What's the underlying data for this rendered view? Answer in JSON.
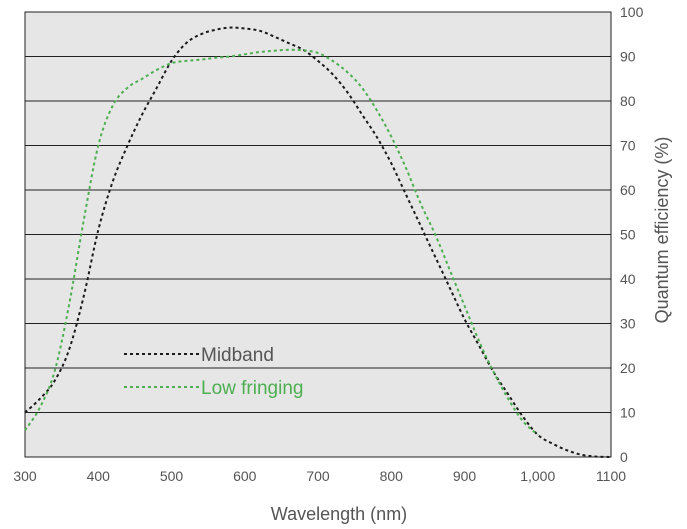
{
  "chart_data": {
    "type": "line",
    "xlabel": "Wavelength (nm)",
    "ylabel": "Quantum efficiency (%)",
    "xlim": [
      300,
      1100
    ],
    "ylim": [
      0,
      100
    ],
    "x_ticks": [
      "300",
      "400",
      "500",
      "600",
      "700",
      "800",
      "900",
      "1,000",
      "1100"
    ],
    "x_tick_values": [
      300,
      400,
      500,
      600,
      700,
      800,
      900,
      1000,
      1100
    ],
    "y_ticks": [
      "0",
      "10",
      "20",
      "30",
      "40",
      "50",
      "60",
      "70",
      "80",
      "90",
      "100"
    ],
    "y_tick_values": [
      0,
      10,
      20,
      30,
      40,
      50,
      60,
      70,
      80,
      90,
      100
    ],
    "grid": "horizontal",
    "y_axis_side": "right",
    "plot_background": "#e6e6e6",
    "legend_position": "lower-left",
    "series": [
      {
        "name": "Midband",
        "color": "#1a1a1a",
        "line_style": "dotted",
        "x": [
          300,
          320,
          340,
          360,
          380,
          400,
          420,
          440,
          460,
          480,
          500,
          520,
          540,
          560,
          580,
          600,
          620,
          640,
          660,
          680,
          700,
          720,
          740,
          760,
          780,
          800,
          820,
          840,
          860,
          880,
          900,
          920,
          940,
          960,
          980,
          1000,
          1020,
          1040,
          1060,
          1080,
          1100
        ],
        "y": [
          10,
          13,
          17,
          24,
          36,
          51,
          62,
          70,
          77,
          83,
          89,
          93,
          95,
          96,
          96.5,
          96.3,
          95.8,
          94.5,
          93,
          91.5,
          89,
          86,
          82,
          77,
          72,
          66,
          59,
          52,
          45,
          38,
          31,
          25,
          19,
          14,
          9,
          5,
          3,
          1.5,
          0.5,
          0.1,
          0
        ]
      },
      {
        "name": "Low fringing",
        "color": "#4caf50",
        "line_style": "dotted",
        "x": [
          300,
          320,
          340,
          360,
          380,
          400,
          420,
          440,
          460,
          480,
          500,
          520,
          540,
          560,
          580,
          600,
          620,
          640,
          660,
          680,
          700,
          720,
          740,
          760,
          780,
          800,
          820,
          840,
          860,
          880,
          900,
          920,
          940,
          960,
          980,
          1000
        ],
        "y": [
          6,
          11,
          19,
          34,
          53,
          70,
          79,
          83,
          85,
          87,
          88.5,
          89,
          89.3,
          89.7,
          90,
          90.5,
          91,
          91.3,
          91.5,
          91.4,
          90.8,
          89,
          86.5,
          83,
          78,
          72,
          65,
          57,
          50,
          42,
          34,
          26,
          19,
          13,
          8,
          5
        ]
      }
    ]
  }
}
